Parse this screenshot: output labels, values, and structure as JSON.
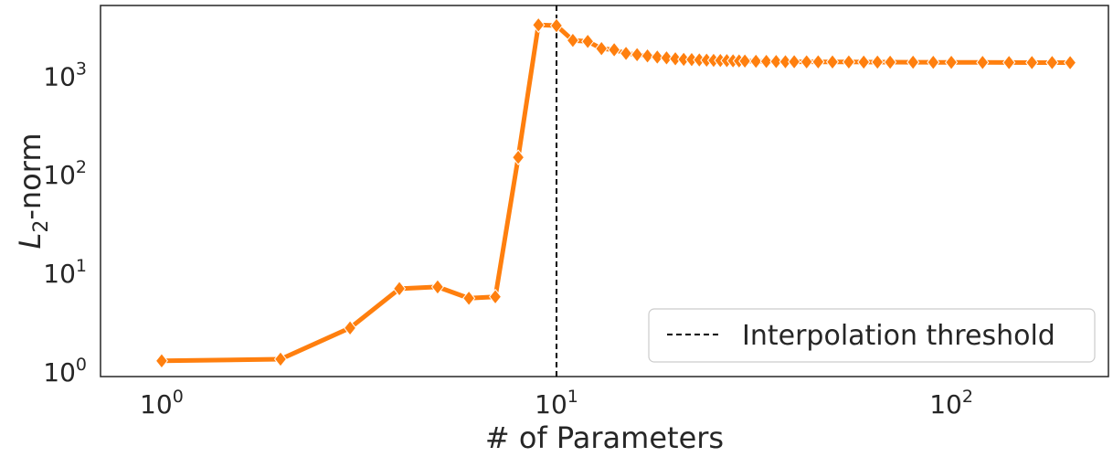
{
  "chart_data": {
    "type": "line",
    "title": "",
    "xscale": "log",
    "yscale": "log",
    "xlim": [
      0.7,
      250
    ],
    "ylim": [
      0.9,
      5200
    ],
    "xlabel": "# of Parameters",
    "ylabel_main": "L",
    "ylabel_sub": "2",
    "ylabel_rest": "-norm",
    "x_ticks": [
      {
        "value": 1,
        "base": "10",
        "exp": "0"
      },
      {
        "value": 10,
        "base": "10",
        "exp": "1"
      },
      {
        "value": 100,
        "base": "10",
        "exp": "2"
      }
    ],
    "y_ticks": [
      {
        "value": 1,
        "base": "10",
        "exp": "0"
      },
      {
        "value": 10,
        "base": "10",
        "exp": "1"
      },
      {
        "value": 100,
        "base": "10",
        "exp": "2"
      },
      {
        "value": 1000,
        "base": "10",
        "exp": "3"
      }
    ],
    "grid": false,
    "legend_position": "lower-right",
    "threshold": {
      "x": 10,
      "label": "Interpolation threshold",
      "color": "#000000"
    },
    "series": [
      {
        "color": "#ff7f0e",
        "marker": "diamond",
        "x": [
          1,
          2,
          3,
          4,
          5,
          6,
          7,
          8,
          9,
          10,
          11,
          12,
          13,
          14,
          15,
          16,
          17,
          18,
          19,
          20,
          21,
          22,
          23,
          24,
          25,
          26,
          27,
          28,
          29,
          30,
          32,
          34,
          36,
          38,
          40,
          43,
          46,
          50,
          55,
          60,
          65,
          70,
          80,
          90,
          100,
          120,
          140,
          160,
          180,
          200
        ],
        "y": [
          1.3,
          1.35,
          2.8,
          7.0,
          7.3,
          5.6,
          5.8,
          150,
          3300,
          3250,
          2300,
          2250,
          1900,
          1850,
          1700,
          1650,
          1600,
          1560,
          1530,
          1500,
          1480,
          1470,
          1460,
          1450,
          1445,
          1440,
          1435,
          1430,
          1425,
          1420,
          1415,
          1410,
          1405,
          1400,
          1398,
          1396,
          1394,
          1392,
          1390,
          1388,
          1386,
          1384,
          1382,
          1380,
          1378,
          1376,
          1374,
          1372,
          1371,
          1370
        ]
      }
    ]
  }
}
